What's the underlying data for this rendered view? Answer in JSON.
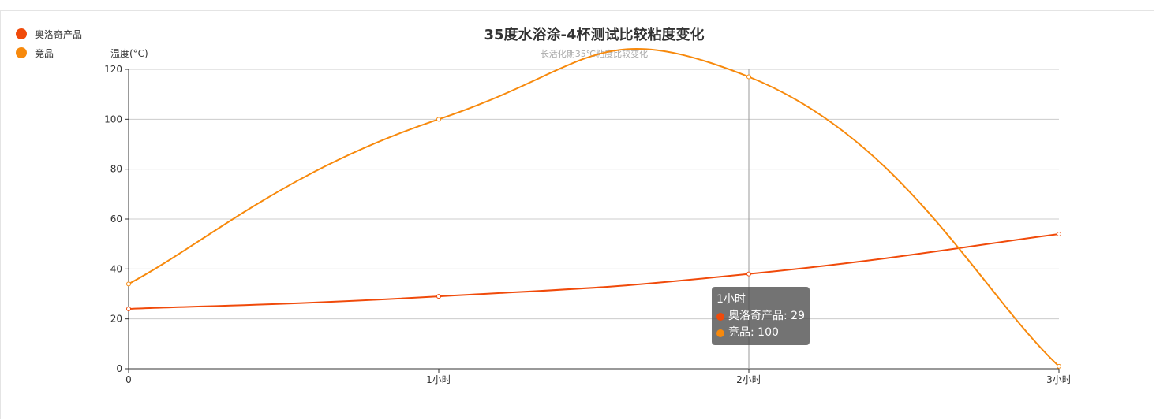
{
  "legend": [
    {
      "label": "奥洛奇产品",
      "color": "#f04a0a"
    },
    {
      "label": "竞品",
      "color": "#f7890c"
    }
  ],
  "chart_data": {
    "type": "line",
    "title": "35度水浴涂-4杯测试比较粘度变化",
    "subtitle": "长活化期35℃粘度比较变化",
    "ylabel": "温度(°C)",
    "xlabel": "",
    "categories": [
      "0",
      "1小时",
      "2小时",
      "3小时"
    ],
    "ylim": [
      0,
      120
    ],
    "yticks": [
      0,
      20,
      40,
      60,
      80,
      100,
      120
    ],
    "grid": true,
    "smooth": true,
    "legend_position": "top-left",
    "series": [
      {
        "name": "奥洛奇产品",
        "color": "#f04a0a",
        "values": [
          24,
          29,
          38,
          54
        ]
      },
      {
        "name": "竞品",
        "color": "#f7890c",
        "values": [
          34,
          100,
          117,
          1
        ]
      }
    ]
  },
  "tooltip": {
    "title": "1小时",
    "rows": [
      {
        "label": "奥洛奇产品: 29",
        "color": "#f04a0a"
      },
      {
        "label": "竞品: 100",
        "color": "#f7890c"
      }
    ]
  }
}
